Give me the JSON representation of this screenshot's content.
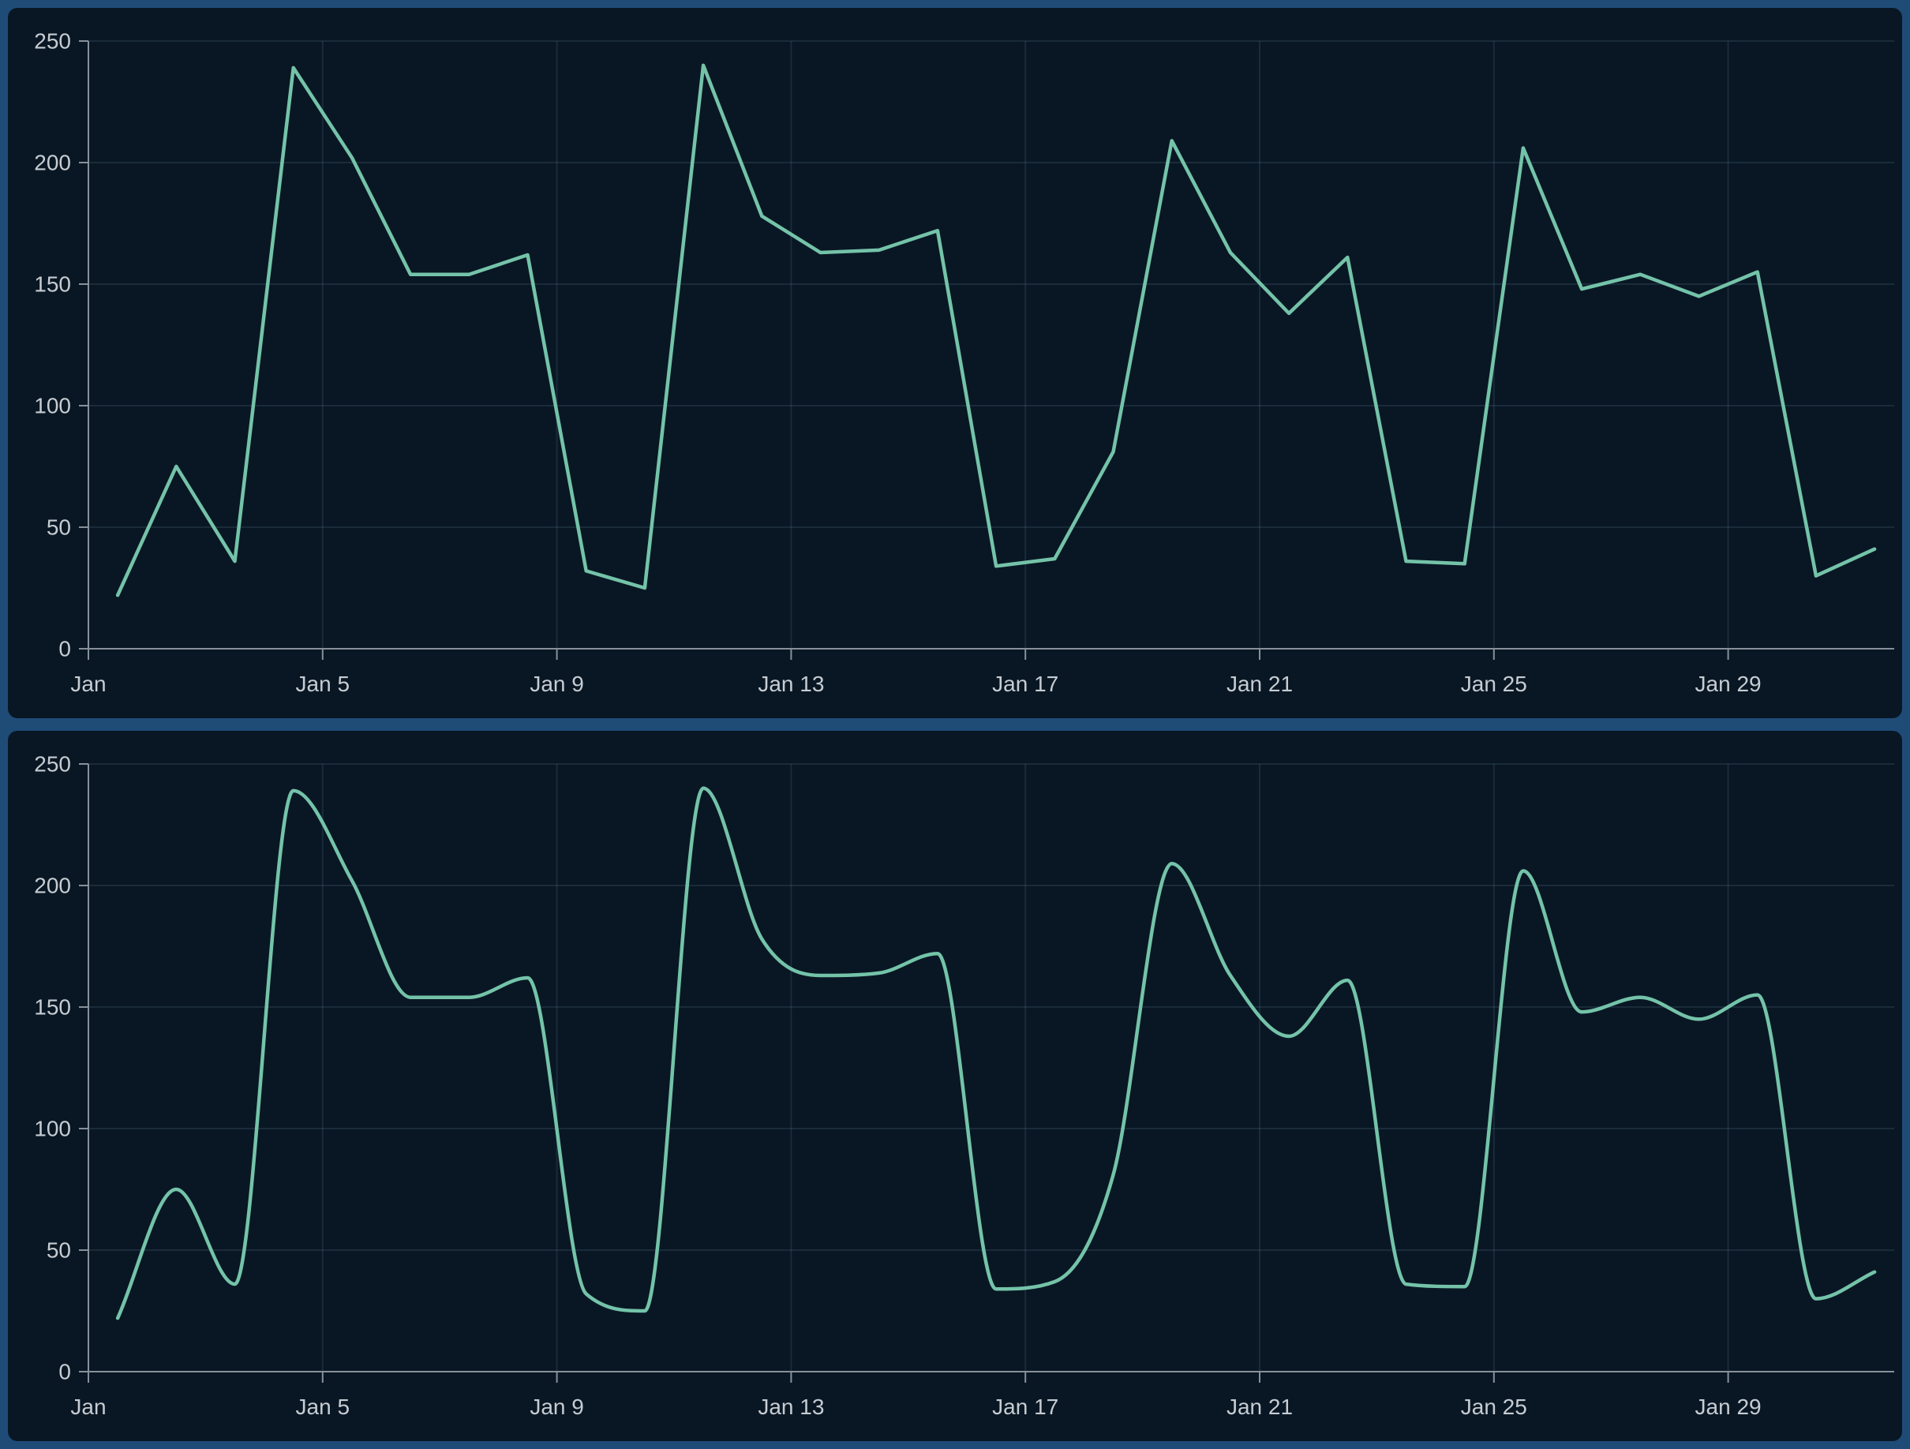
{
  "theme": {
    "page_background": "#1f4b77",
    "card_background": "#091724",
    "grid_color": "rgba(150,180,205,0.13)",
    "axis_color": "#87919b",
    "label_color": "#c6ccd2",
    "line_color": "#74c3a9"
  },
  "chart_data": [
    {
      "type": "line",
      "interpolation": "linear",
      "series_name": "daily-values-january",
      "categories": [
        "Jan 1",
        "Jan 2",
        "Jan 3",
        "Jan 4",
        "Jan 5",
        "Jan 6",
        "Jan 7",
        "Jan 8",
        "Jan 9",
        "Jan 10",
        "Jan 11",
        "Jan 12",
        "Jan 13",
        "Jan 14",
        "Jan 15",
        "Jan 16",
        "Jan 17",
        "Jan 18",
        "Jan 19",
        "Jan 20",
        "Jan 21",
        "Jan 22",
        "Jan 23",
        "Jan 24",
        "Jan 25",
        "Jan 26",
        "Jan 27",
        "Jan 28",
        "Jan 29",
        "Jan 30",
        "Jan 31"
      ],
      "values": [
        22,
        75,
        36,
        239,
        202,
        154,
        154,
        162,
        32,
        25,
        240,
        178,
        163,
        164,
        172,
        34,
        37,
        81,
        209,
        163,
        138,
        161,
        36,
        35,
        206,
        148,
        154,
        145,
        155,
        30,
        41
      ],
      "x_tick_labels": [
        "Jan",
        "Jan 5",
        "Jan 9",
        "Jan 13",
        "Jan 17",
        "Jan 21",
        "Jan 25",
        "Jan 29"
      ],
      "x_tick_day_indexes": [
        0,
        4,
        8,
        12,
        16,
        20,
        24,
        28
      ],
      "y_ticks": [
        0,
        50,
        100,
        150,
        200,
        250
      ],
      "ylim": [
        0,
        250
      ],
      "grid": true,
      "legend": "none",
      "title": ""
    },
    {
      "type": "line",
      "interpolation": "monotone-smooth",
      "series_name": "daily-values-january-smoothed",
      "categories": [
        "Jan 1",
        "Jan 2",
        "Jan 3",
        "Jan 4",
        "Jan 5",
        "Jan 6",
        "Jan 7",
        "Jan 8",
        "Jan 9",
        "Jan 10",
        "Jan 11",
        "Jan 12",
        "Jan 13",
        "Jan 14",
        "Jan 15",
        "Jan 16",
        "Jan 17",
        "Jan 18",
        "Jan 19",
        "Jan 20",
        "Jan 21",
        "Jan 22",
        "Jan 23",
        "Jan 24",
        "Jan 25",
        "Jan 26",
        "Jan 27",
        "Jan 28",
        "Jan 29",
        "Jan 30",
        "Jan 31"
      ],
      "values": [
        22,
        75,
        36,
        239,
        202,
        154,
        154,
        162,
        32,
        25,
        240,
        178,
        163,
        164,
        172,
        34,
        37,
        81,
        209,
        163,
        138,
        161,
        36,
        35,
        206,
        148,
        154,
        145,
        155,
        30,
        41
      ],
      "x_tick_labels": [
        "Jan",
        "Jan 5",
        "Jan 9",
        "Jan 13",
        "Jan 17",
        "Jan 21",
        "Jan 25",
        "Jan 29"
      ],
      "x_tick_day_indexes": [
        0,
        4,
        8,
        12,
        16,
        20,
        24,
        28
      ],
      "y_ticks": [
        0,
        50,
        100,
        150,
        200,
        250
      ],
      "ylim": [
        0,
        250
      ],
      "grid": true,
      "legend": "none",
      "title": ""
    }
  ]
}
